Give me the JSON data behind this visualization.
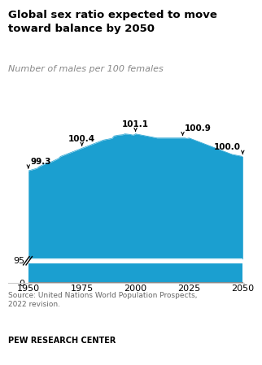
{
  "title": "Global sex ratio expected to move\ntoward balance by 2050",
  "subtitle": "Number of males per 100 females",
  "source": "Source: United Nations World Population Prospects,\n2022 revision.",
  "footer": "PEW RESEARCH CENTER",
  "years": [
    1950,
    1951,
    1952,
    1953,
    1954,
    1955,
    1956,
    1957,
    1958,
    1959,
    1960,
    1961,
    1962,
    1963,
    1964,
    1965,
    1966,
    1967,
    1968,
    1969,
    1970,
    1971,
    1972,
    1973,
    1974,
    1975,
    1976,
    1977,
    1978,
    1979,
    1980,
    1981,
    1982,
    1983,
    1984,
    1985,
    1986,
    1987,
    1988,
    1989,
    1990,
    1991,
    1992,
    1993,
    1994,
    1995,
    1996,
    1997,
    1998,
    1999,
    2000,
    2001,
    2002,
    2003,
    2004,
    2005,
    2006,
    2007,
    2008,
    2009,
    2010,
    2011,
    2012,
    2013,
    2014,
    2015,
    2016,
    2017,
    2018,
    2019,
    2020,
    2021,
    2022,
    2023,
    2024,
    2025,
    2026,
    2027,
    2028,
    2029,
    2030,
    2031,
    2032,
    2033,
    2034,
    2035,
    2036,
    2037,
    2038,
    2039,
    2040,
    2041,
    2042,
    2043,
    2044,
    2045,
    2046,
    2047,
    2048,
    2049,
    2050
  ],
  "values": [
    99.3,
    99.33,
    99.36,
    99.39,
    99.42,
    99.5,
    99.55,
    99.6,
    99.65,
    99.7,
    99.7,
    99.75,
    99.8,
    99.85,
    99.9,
    100.0,
    100.04,
    100.08,
    100.12,
    100.16,
    100.2,
    100.24,
    100.28,
    100.32,
    100.36,
    100.4,
    100.44,
    100.48,
    100.52,
    100.56,
    100.6,
    100.64,
    100.68,
    100.72,
    100.76,
    100.8,
    100.82,
    100.84,
    100.86,
    100.88,
    101.0,
    101.02,
    101.04,
    101.05,
    101.06,
    101.1,
    101.09,
    101.08,
    101.06,
    101.04,
    101.1,
    101.08,
    101.06,
    101.04,
    101.02,
    101.0,
    100.98,
    100.96,
    100.94,
    100.92,
    100.9,
    100.9,
    100.9,
    100.9,
    100.9,
    100.9,
    100.9,
    100.9,
    100.9,
    100.9,
    100.9,
    100.9,
    100.9,
    100.9,
    100.88,
    100.9,
    100.86,
    100.82,
    100.78,
    100.74,
    100.7,
    100.66,
    100.62,
    100.58,
    100.54,
    100.5,
    100.46,
    100.42,
    100.38,
    100.34,
    100.3,
    100.26,
    100.22,
    100.18,
    100.14,
    100.1,
    100.08,
    100.06,
    100.04,
    100.02,
    100.0
  ],
  "annotations": [
    {
      "year": 1950,
      "value": 99.3,
      "label": "99.3",
      "ha": "left"
    },
    {
      "year": 1975,
      "value": 100.4,
      "label": "100.4",
      "ha": "center"
    },
    {
      "year": 2000,
      "value": 101.1,
      "label": "101.1",
      "ha": "center"
    },
    {
      "year": 2022,
      "value": 100.9,
      "label": "100.9",
      "ha": "left"
    },
    {
      "year": 2050,
      "value": 100.0,
      "label": "100.0",
      "ha": "right"
    }
  ],
  "area_color": "#1b9fd0",
  "line_color": "#1b9fd0",
  "background_color": "#ffffff",
  "xticks": [
    1950,
    1975,
    2000,
    2025,
    2050
  ]
}
